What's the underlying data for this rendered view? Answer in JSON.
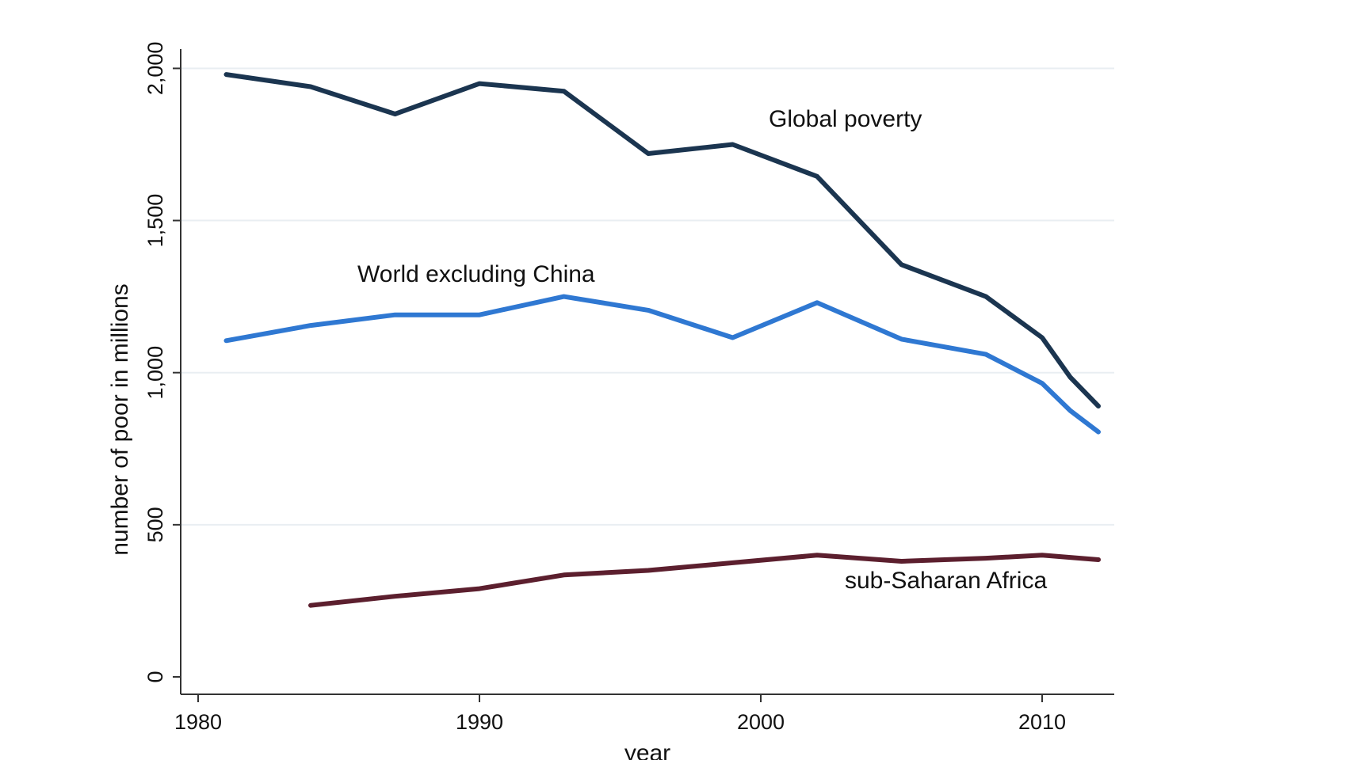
{
  "chart_data": {
    "type": "line",
    "title": "",
    "xlabel": "year",
    "ylabel": "number of poor in millions",
    "xlim": [
      1980,
      2013.3
    ],
    "ylim": [
      0,
      2100
    ],
    "x_ticks": [
      1980,
      1990,
      2000,
      2010
    ],
    "x_tick_labels": [
      "1980",
      "1990",
      "2000",
      "2010"
    ],
    "y_ticks": [
      0,
      500,
      1000,
      1500,
      2000
    ],
    "y_tick_labels": [
      "0",
      "500",
      "1,000",
      "1,500",
      "2,000"
    ],
    "grid": true,
    "legend": "none (direct labels)",
    "series": [
      {
        "name": "Global poverty",
        "color": "#1b3550",
        "x": [
          1981,
          1984,
          1987,
          1990,
          1993,
          1996,
          1999,
          2002,
          2005,
          2008,
          2010,
          2011,
          2012
        ],
        "values": [
          1980,
          1940,
          1850,
          1950,
          1925,
          1720,
          1750,
          1645,
          1355,
          1250,
          1115,
          985,
          890
        ]
      },
      {
        "name": "World excluding China",
        "color": "#2f78d2",
        "x": [
          1981,
          1984,
          1987,
          1990,
          1993,
          1996,
          1999,
          2002,
          2005,
          2008,
          2010,
          2011,
          2012
        ],
        "values": [
          1105,
          1155,
          1190,
          1190,
          1250,
          1205,
          1115,
          1230,
          1110,
          1060,
          965,
          875,
          805
        ]
      },
      {
        "name": "sub-Saharan Africa",
        "color": "#5c1f2e",
        "x": [
          1984,
          1987,
          1990,
          1993,
          1996,
          1999,
          2002,
          2005,
          2008,
          2010,
          2012
        ],
        "values": [
          235,
          265,
          290,
          335,
          350,
          375,
          400,
          380,
          390,
          400,
          385
        ]
      }
    ],
    "annotations": [
      {
        "text": "Global poverty",
        "series": 0
      },
      {
        "text": "World excluding China",
        "series": 1
      },
      {
        "text": "sub-Saharan Africa",
        "series": 2
      }
    ]
  }
}
